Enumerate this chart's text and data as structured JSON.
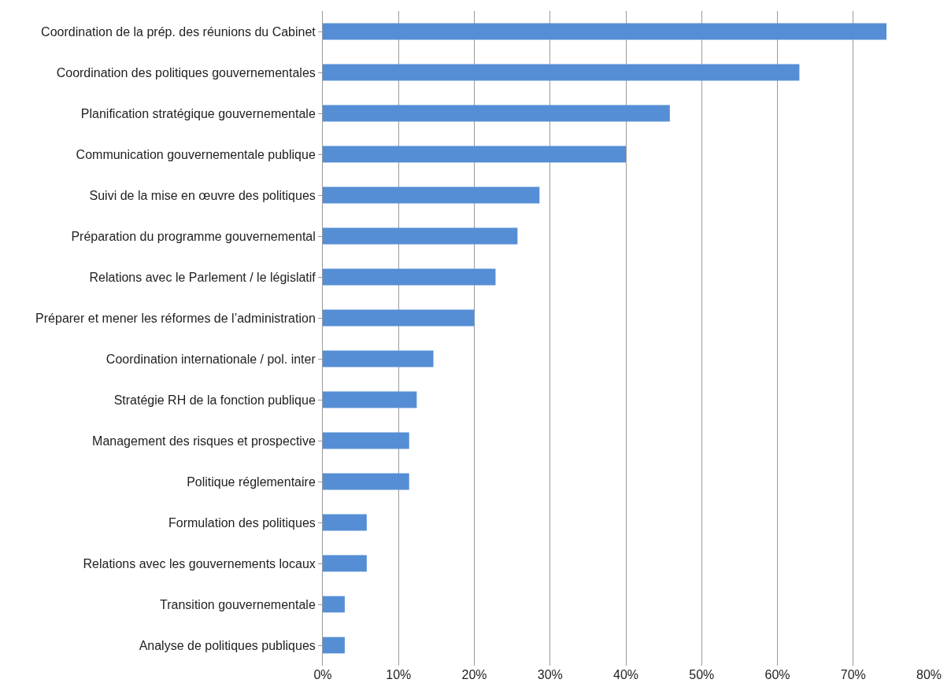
{
  "chart_data": {
    "type": "bar",
    "orientation": "horizontal",
    "categories": [
      "Coordination de la prép. des réunions du Cabinet",
      "Coordination des politiques gouvernementales",
      "Planification stratégique gouvernementale",
      "Communication gouvernementale publique",
      "Suivi de la mise en œuvre des politiques",
      "Préparation du programme gouvernemental",
      "Relations avec le Parlement / le législatif",
      "Préparer et mener les réformes de l’administration",
      "Coordination internationale / pol. inter",
      "Stratégie RH de la fonction publique",
      "Management des risques et prospective",
      "Politique réglementaire",
      "Formulation des politiques",
      "Relations avec les gouvernements locaux",
      "Transition gouvernementale",
      "Analyse de politiques publiques"
    ],
    "values": [
      74.4,
      62.9,
      45.8,
      40.0,
      28.6,
      25.7,
      22.8,
      20.0,
      14.6,
      12.4,
      11.4,
      11.4,
      5.8,
      5.8,
      2.9,
      2.9
    ],
    "color": "#558ed5",
    "xlim": [
      0,
      80
    ],
    "xticks": [
      {
        "value": 0,
        "label": "0%"
      },
      {
        "value": 10,
        "label": "10%"
      },
      {
        "value": 20,
        "label": "20%"
      },
      {
        "value": 30,
        "label": "30%"
      },
      {
        "value": 40,
        "label": "40%"
      },
      {
        "value": 50,
        "label": "50%"
      },
      {
        "value": 60,
        "label": "60%"
      },
      {
        "value": 70,
        "label": "70%"
      },
      {
        "value": 80,
        "label": "80%"
      }
    ],
    "grid": "x",
    "legend": false
  }
}
